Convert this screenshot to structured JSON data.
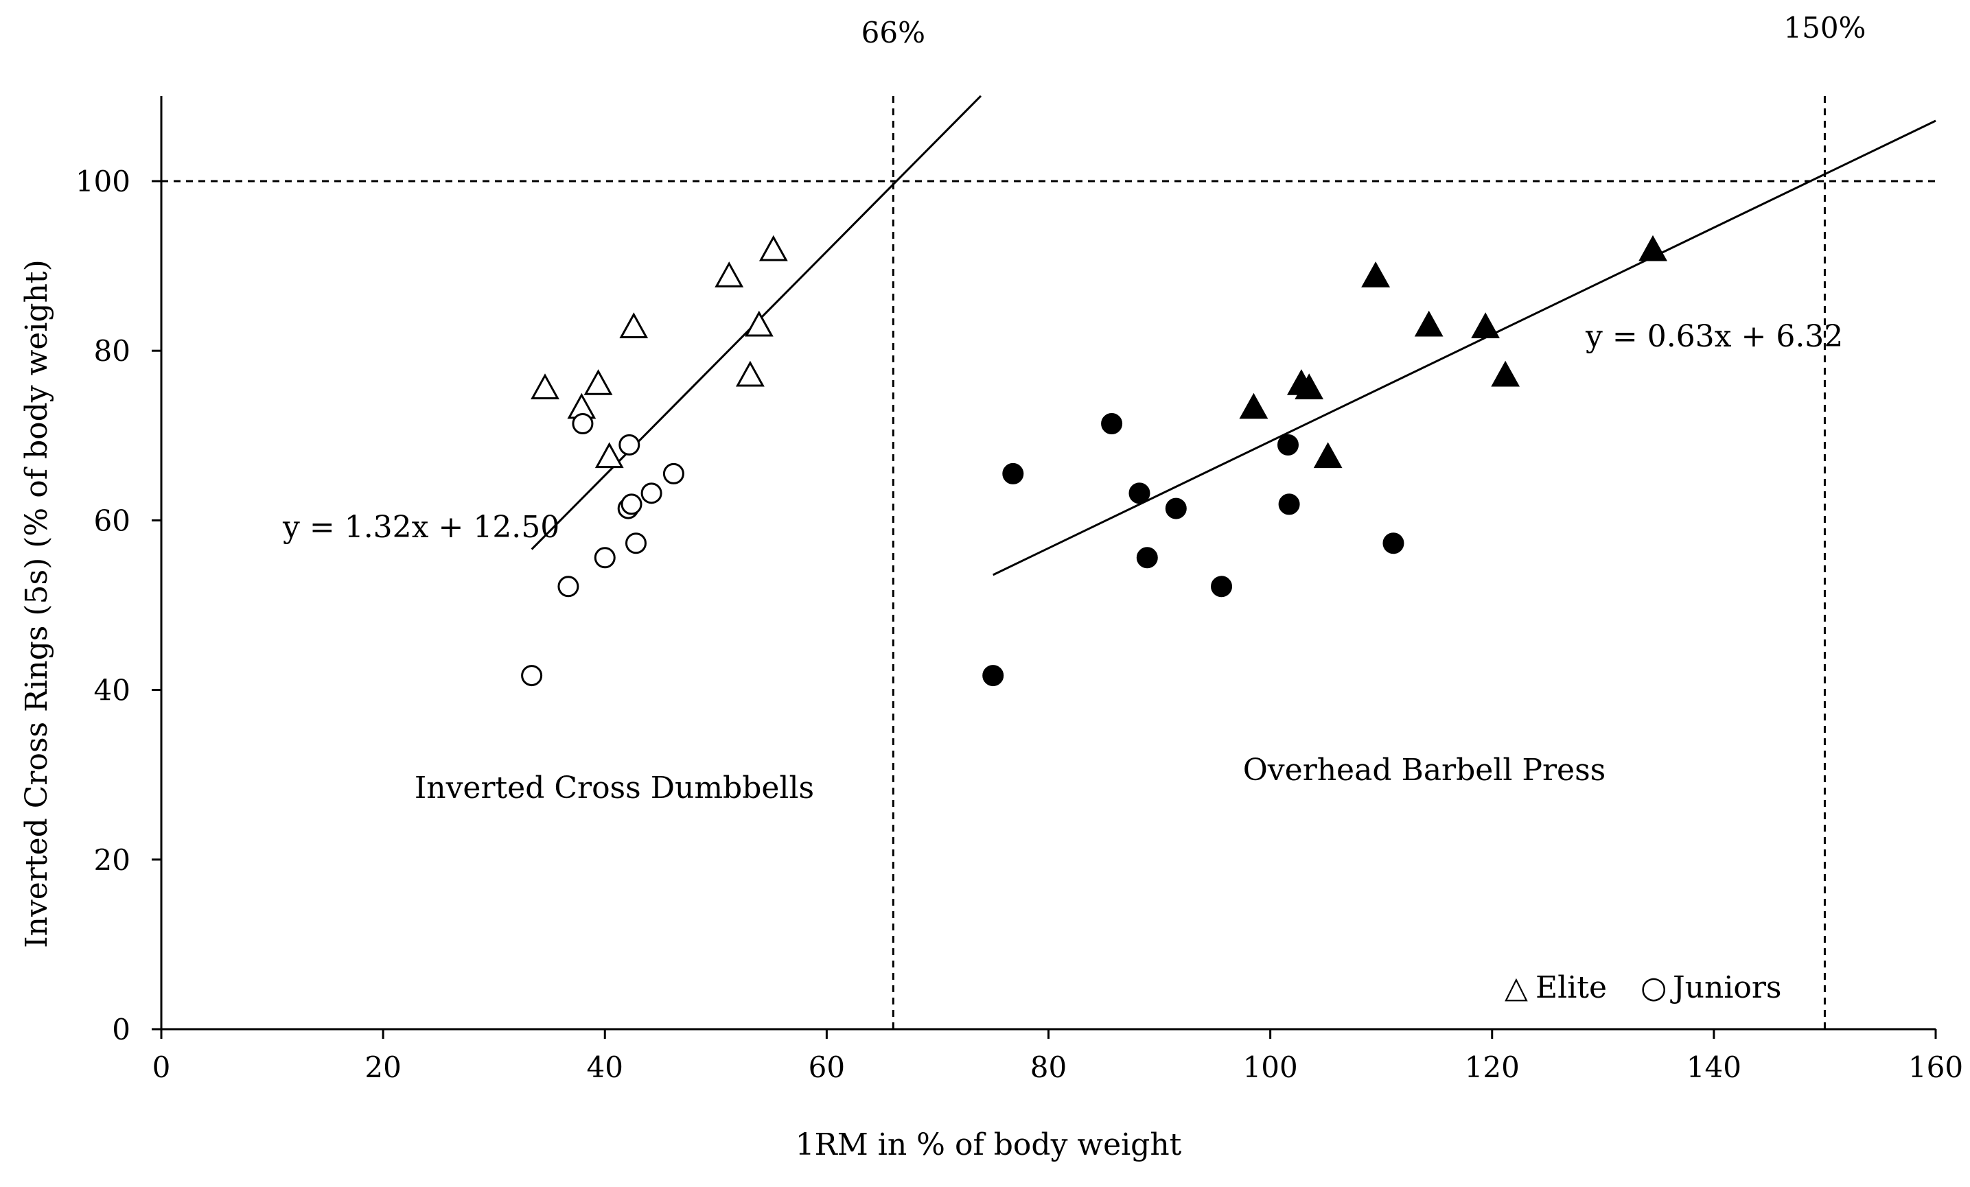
{
  "chart_data": {
    "type": "scatter",
    "xlabel": "1RM in % of body weight",
    "ylabel": "Inverted Cross Rings (5s) (% of body weight)",
    "xlim": [
      0,
      160
    ],
    "ylim": [
      0,
      110
    ],
    "xticks": [
      0,
      20,
      40,
      60,
      80,
      100,
      120,
      140,
      160
    ],
    "yticks": [
      0,
      20,
      40,
      60,
      80,
      100
    ],
    "grid": false,
    "colors": {
      "ink": "#000000",
      "background": "#ffffff"
    },
    "reference_lines": [
      {
        "orientation": "horizontal",
        "value": 100,
        "style": "dashed"
      },
      {
        "orientation": "vertical",
        "value": 66,
        "style": "dashed",
        "label": "66%"
      },
      {
        "orientation": "vertical",
        "value": 150,
        "style": "dashed",
        "label": "150%"
      }
    ],
    "series": [
      {
        "name": "Inverted Cross Dumbbells - Elite",
        "exercise": "Inverted Cross Dumbbells",
        "group": "Elite",
        "marker": "triangle-open",
        "points": [
          [
            34.6,
            75.7
          ],
          [
            37.9,
            73.4
          ],
          [
            39.4,
            76.2
          ],
          [
            40.4,
            67.6
          ],
          [
            42.6,
            82.9
          ],
          [
            51.2,
            88.9
          ],
          [
            53.1,
            77.2
          ],
          [
            53.9,
            83.1
          ],
          [
            55.2,
            92.0
          ]
        ]
      },
      {
        "name": "Inverted Cross Dumbbells - Juniors",
        "exercise": "Inverted Cross Dumbbells",
        "group": "Juniors",
        "marker": "circle-open",
        "points": [
          [
            33.4,
            41.7
          ],
          [
            36.7,
            52.2
          ],
          [
            38.0,
            71.4
          ],
          [
            40.0,
            55.6
          ],
          [
            42.1,
            61.4
          ],
          [
            42.2,
            68.9
          ],
          [
            42.4,
            61.9
          ],
          [
            42.8,
            57.3
          ],
          [
            44.2,
            63.2
          ],
          [
            46.2,
            65.5
          ]
        ]
      },
      {
        "name": "Overhead Barbell Press - Elite",
        "exercise": "Overhead Barbell Press",
        "group": "Elite",
        "marker": "triangle-filled",
        "points": [
          [
            98.5,
            73.4
          ],
          [
            102.8,
            76.2
          ],
          [
            103.5,
            75.7
          ],
          [
            105.2,
            67.6
          ],
          [
            109.5,
            88.9
          ],
          [
            114.3,
            83.1
          ],
          [
            119.4,
            82.9
          ],
          [
            121.2,
            77.2
          ],
          [
            134.5,
            92.0
          ]
        ]
      },
      {
        "name": "Overhead Barbell Press - Juniors",
        "exercise": "Overhead Barbell Press",
        "group": "Juniors",
        "marker": "circle-filled",
        "points": [
          [
            75.0,
            41.7
          ],
          [
            76.8,
            65.5
          ],
          [
            85.7,
            71.4
          ],
          [
            88.2,
            63.2
          ],
          [
            88.9,
            55.6
          ],
          [
            91.5,
            61.4
          ],
          [
            95.6,
            52.2
          ],
          [
            101.6,
            68.9
          ],
          [
            101.7,
            61.9
          ],
          [
            111.1,
            57.3
          ]
        ]
      }
    ],
    "trendlines": [
      {
        "name": "Inverted Cross Dumbbells fit",
        "slope": 1.32,
        "intercept": 12.5,
        "x_range": [
          33.4,
          73.9
        ],
        "equation": "y = 1.32x + 12.50"
      },
      {
        "name": "Overhead Barbell Press fit",
        "slope": 0.63,
        "intercept": 6.32,
        "x_range": [
          75.0,
          160.0
        ],
        "equation": "y = 0.63x + 6.32"
      }
    ],
    "annotations": [
      {
        "text": "Inverted Cross Dumbbells"
      },
      {
        "text": "Overhead Barbell Press"
      }
    ],
    "legend": {
      "placement": "bottom-right",
      "items": [
        {
          "label": "Elite",
          "symbol": "△"
        },
        {
          "label": "Juniors",
          "symbol": "○"
        }
      ]
    }
  }
}
